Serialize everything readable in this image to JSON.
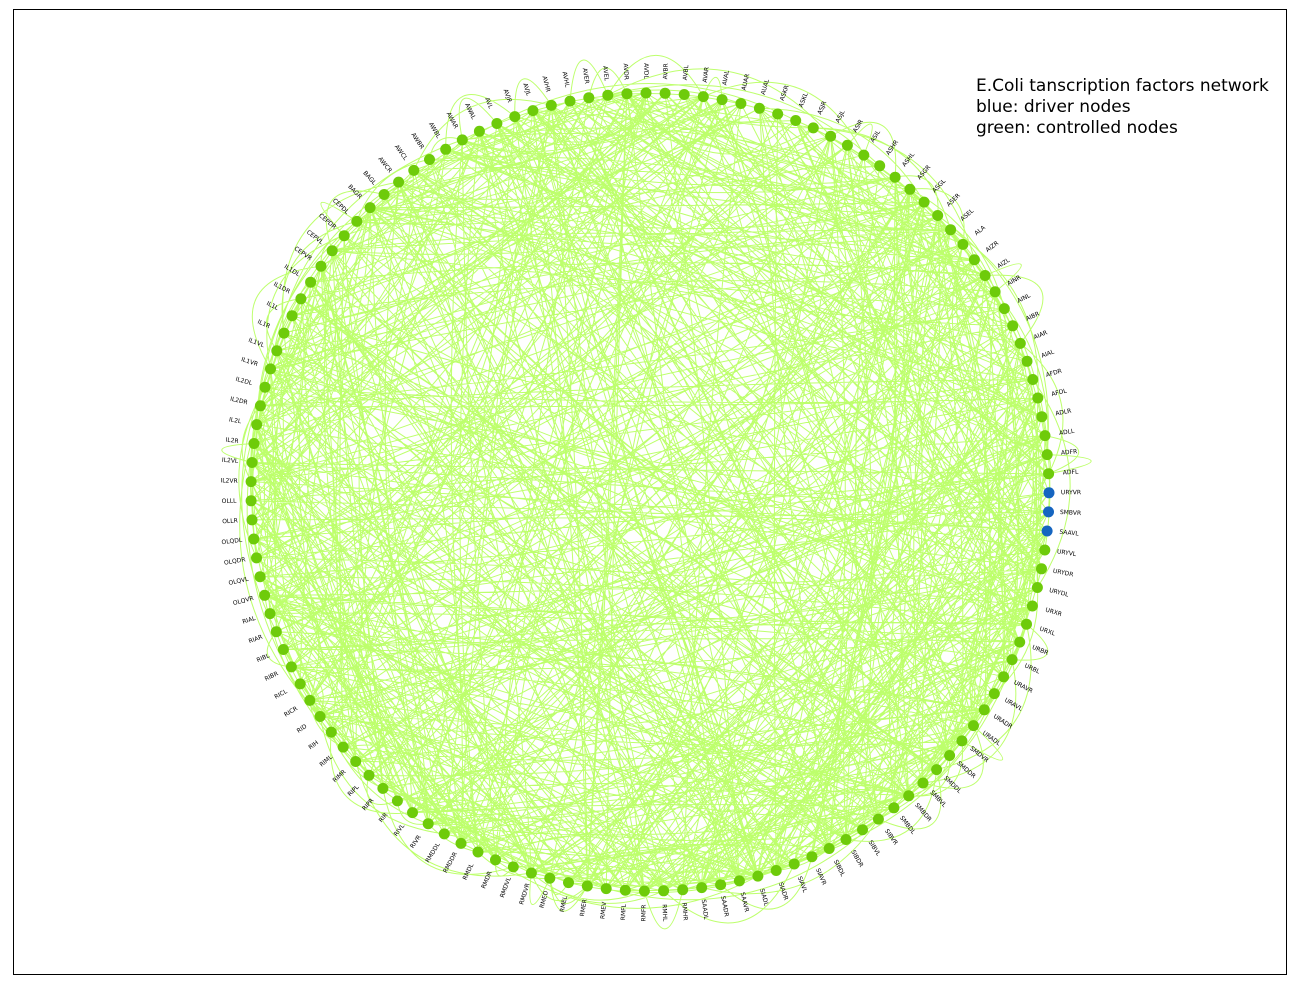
{
  "legend": {
    "line1": "E.Coli tanscription factors network",
    "line2": "blue: driver nodes",
    "line3": "green: controlled nodes"
  },
  "colors": {
    "edge": "#b6ff5c",
    "controlled_node": "#6ecb0a",
    "driver_node": "#1565c0",
    "background": "#ffffff",
    "frame": "#000000"
  },
  "nodes": [
    {
      "label": "ADFL",
      "type": "controlled"
    },
    {
      "label": "ADFR",
      "type": "controlled"
    },
    {
      "label": "ADLL",
      "type": "controlled"
    },
    {
      "label": "ADLR",
      "type": "controlled"
    },
    {
      "label": "AFDL",
      "type": "controlled"
    },
    {
      "label": "AFDR",
      "type": "controlled"
    },
    {
      "label": "AIAL",
      "type": "controlled"
    },
    {
      "label": "AIAR",
      "type": "controlled"
    },
    {
      "label": "AIBR",
      "type": "controlled"
    },
    {
      "label": "AINL",
      "type": "controlled"
    },
    {
      "label": "AINR",
      "type": "controlled"
    },
    {
      "label": "AIZL",
      "type": "controlled"
    },
    {
      "label": "AIZR",
      "type": "controlled"
    },
    {
      "label": "ALA",
      "type": "controlled"
    },
    {
      "label": "ASEL",
      "type": "controlled"
    },
    {
      "label": "ASER",
      "type": "controlled"
    },
    {
      "label": "ASGL",
      "type": "controlled"
    },
    {
      "label": "ASGR",
      "type": "controlled"
    },
    {
      "label": "ASHL",
      "type": "controlled"
    },
    {
      "label": "ASHR",
      "type": "controlled"
    },
    {
      "label": "ASIL",
      "type": "controlled"
    },
    {
      "label": "ASIR",
      "type": "controlled"
    },
    {
      "label": "ASJL",
      "type": "controlled"
    },
    {
      "label": "ASJR",
      "type": "controlled"
    },
    {
      "label": "ASKL",
      "type": "controlled"
    },
    {
      "label": "ASKR",
      "type": "controlled"
    },
    {
      "label": "AUAL",
      "type": "controlled"
    },
    {
      "label": "AUAR",
      "type": "controlled"
    },
    {
      "label": "AVAL",
      "type": "controlled"
    },
    {
      "label": "AVAR",
      "type": "controlled"
    },
    {
      "label": "AVBL",
      "type": "controlled"
    },
    {
      "label": "AVBR",
      "type": "controlled"
    },
    {
      "label": "AVDL",
      "type": "controlled"
    },
    {
      "label": "AVDR",
      "type": "controlled"
    },
    {
      "label": "AVEL",
      "type": "controlled"
    },
    {
      "label": "AVER",
      "type": "controlled"
    },
    {
      "label": "AVHL",
      "type": "controlled"
    },
    {
      "label": "AVHR",
      "type": "controlled"
    },
    {
      "label": "AVJL",
      "type": "controlled"
    },
    {
      "label": "AVJR",
      "type": "controlled"
    },
    {
      "label": "AVL",
      "type": "controlled"
    },
    {
      "label": "AWAL",
      "type": "controlled"
    },
    {
      "label": "AWAR",
      "type": "controlled"
    },
    {
      "label": "AWBL",
      "type": "controlled"
    },
    {
      "label": "AWBR",
      "type": "controlled"
    },
    {
      "label": "AWCL",
      "type": "controlled"
    },
    {
      "label": "AWCR",
      "type": "controlled"
    },
    {
      "label": "BAGL",
      "type": "controlled"
    },
    {
      "label": "BAGR",
      "type": "controlled"
    },
    {
      "label": "CEPDL",
      "type": "controlled"
    },
    {
      "label": "CEPDR",
      "type": "controlled"
    },
    {
      "label": "CEPVL",
      "type": "controlled"
    },
    {
      "label": "CEPVR",
      "type": "controlled"
    },
    {
      "label": "IL1DL",
      "type": "controlled"
    },
    {
      "label": "IL1DR",
      "type": "controlled"
    },
    {
      "label": "IL1L",
      "type": "controlled"
    },
    {
      "label": "IL1R",
      "type": "controlled"
    },
    {
      "label": "IL1VL",
      "type": "controlled"
    },
    {
      "label": "IL1VR",
      "type": "controlled"
    },
    {
      "label": "IL2DL",
      "type": "controlled"
    },
    {
      "label": "IL2DR",
      "type": "controlled"
    },
    {
      "label": "IL2L",
      "type": "controlled"
    },
    {
      "label": "IL2R",
      "type": "controlled"
    },
    {
      "label": "IL2VL",
      "type": "controlled"
    },
    {
      "label": "IL2VR",
      "type": "controlled"
    },
    {
      "label": "OLLL",
      "type": "controlled"
    },
    {
      "label": "OLLR",
      "type": "controlled"
    },
    {
      "label": "OLQDL",
      "type": "controlled"
    },
    {
      "label": "OLQDR",
      "type": "controlled"
    },
    {
      "label": "OLQVL",
      "type": "controlled"
    },
    {
      "label": "OLQVR",
      "type": "controlled"
    },
    {
      "label": "RIAL",
      "type": "controlled"
    },
    {
      "label": "RIAR",
      "type": "controlled"
    },
    {
      "label": "RIBL",
      "type": "controlled"
    },
    {
      "label": "RIBR",
      "type": "controlled"
    },
    {
      "label": "RICL",
      "type": "controlled"
    },
    {
      "label": "RICR",
      "type": "controlled"
    },
    {
      "label": "RID",
      "type": "controlled"
    },
    {
      "label": "RIH",
      "type": "controlled"
    },
    {
      "label": "RIML",
      "type": "controlled"
    },
    {
      "label": "RIMR",
      "type": "controlled"
    },
    {
      "label": "RIPL",
      "type": "controlled"
    },
    {
      "label": "RIPR",
      "type": "controlled"
    },
    {
      "label": "RIR",
      "type": "controlled"
    },
    {
      "label": "RIVL",
      "type": "controlled"
    },
    {
      "label": "RIVR",
      "type": "controlled"
    },
    {
      "label": "RMDDL",
      "type": "controlled"
    },
    {
      "label": "RMDDR",
      "type": "controlled"
    },
    {
      "label": "RMDL",
      "type": "controlled"
    },
    {
      "label": "RMDR",
      "type": "controlled"
    },
    {
      "label": "RMDVL",
      "type": "controlled"
    },
    {
      "label": "RMDVR",
      "type": "controlled"
    },
    {
      "label": "RMED",
      "type": "controlled"
    },
    {
      "label": "RMEL",
      "type": "controlled"
    },
    {
      "label": "RMER",
      "type": "controlled"
    },
    {
      "label": "RMEV",
      "type": "controlled"
    },
    {
      "label": "RMFL",
      "type": "controlled"
    },
    {
      "label": "RMFR",
      "type": "controlled"
    },
    {
      "label": "RMHL",
      "type": "controlled"
    },
    {
      "label": "RMHR",
      "type": "controlled"
    },
    {
      "label": "SAADL",
      "type": "controlled"
    },
    {
      "label": "SAADR",
      "type": "controlled"
    },
    {
      "label": "SAAVR",
      "type": "controlled"
    },
    {
      "label": "SIADL",
      "type": "controlled"
    },
    {
      "label": "SIADR",
      "type": "controlled"
    },
    {
      "label": "SIAVL",
      "type": "controlled"
    },
    {
      "label": "SIAVR",
      "type": "controlled"
    },
    {
      "label": "SIBDL",
      "type": "controlled"
    },
    {
      "label": "SIBDR",
      "type": "controlled"
    },
    {
      "label": "SIBVL",
      "type": "controlled"
    },
    {
      "label": "SIBVR",
      "type": "controlled"
    },
    {
      "label": "SMBDL",
      "type": "controlled"
    },
    {
      "label": "SMBDR",
      "type": "controlled"
    },
    {
      "label": "SMBVL",
      "type": "controlled"
    },
    {
      "label": "SMDDL",
      "type": "controlled"
    },
    {
      "label": "SMDDR",
      "type": "controlled"
    },
    {
      "label": "SMDVR",
      "type": "controlled"
    },
    {
      "label": "URADL",
      "type": "controlled"
    },
    {
      "label": "URADR",
      "type": "controlled"
    },
    {
      "label": "URAVL",
      "type": "controlled"
    },
    {
      "label": "URAVR",
      "type": "controlled"
    },
    {
      "label": "URBL",
      "type": "controlled"
    },
    {
      "label": "URBR",
      "type": "controlled"
    },
    {
      "label": "URXL",
      "type": "controlled"
    },
    {
      "label": "URXR",
      "type": "controlled"
    },
    {
      "label": "URYDL",
      "type": "controlled"
    },
    {
      "label": "URYDR",
      "type": "controlled"
    },
    {
      "label": "URYVL",
      "type": "controlled"
    },
    {
      "label": "SAAVL",
      "type": "driver"
    },
    {
      "label": "SMBVR",
      "type": "driver"
    },
    {
      "label": "URYVR",
      "type": "driver"
    }
  ]
}
